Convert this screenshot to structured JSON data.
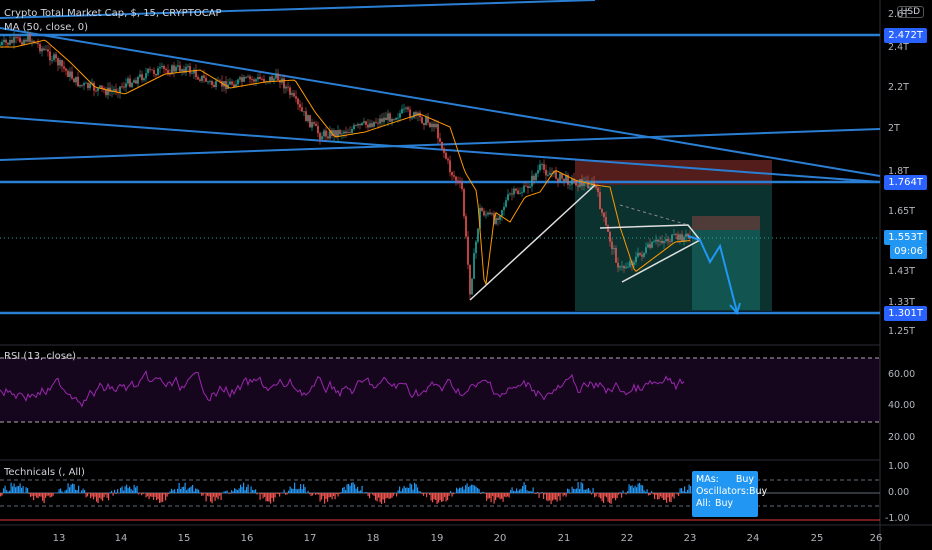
{
  "main_legend": {
    "title": "Crypto Total Market Cap, $, 15, CRYPTOCAP",
    "ma": "MA (50, close, 0)"
  },
  "price_axis": {
    "currency": "USD",
    "ticks": [
      "2.6T",
      "2.4T",
      "2.2T",
      "2T",
      "1.8T",
      "1.65T",
      "1.43T",
      "1.33T",
      "1.25T"
    ],
    "markers": {
      "upper_line": "2.472T",
      "resistance": "1.764T",
      "last_price": "1.553T",
      "countdown": "09:06",
      "support": "1.301T"
    }
  },
  "rsi_panel": {
    "legend": "RSI (13, close)",
    "ticks": [
      "60.00",
      "40.00",
      "20.00"
    ]
  },
  "tech_panel": {
    "legend": "Technicals (, All)",
    "ticks": [
      "1.00",
      "0.00",
      "-1.00"
    ],
    "summary": [
      {
        "label": "MAs:",
        "value": "Buy"
      },
      {
        "label": "Oscillators:",
        "value": "Buy"
      },
      {
        "label": "All:",
        "value": "Buy"
      }
    ]
  },
  "time_axis": [
    "13",
    "14",
    "15",
    "16",
    "17",
    "18",
    "19",
    "20",
    "21",
    "22",
    "23",
    "24",
    "25",
    "26"
  ],
  "colors": {
    "candle_up": "#26a69a",
    "candle_down": "#ef5350",
    "trendline": "#2a7fd4",
    "ma": "#ff9800",
    "rsi": "#9c27b0",
    "accent": "#2962ff"
  }
}
